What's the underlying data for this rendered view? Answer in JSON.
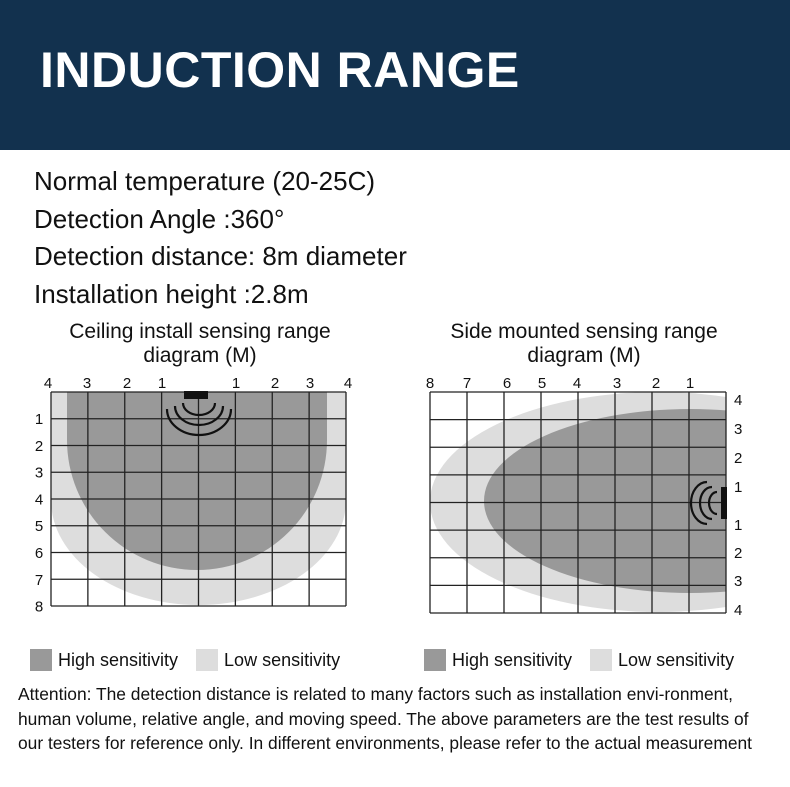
{
  "header": {
    "title": "INDUCTION RANGE"
  },
  "specs": [
    "Normal temperature (20-25C)",
    "Detection Angle :360°",
    "Detection distance: 8m diameter",
    "Installation height :2.8m"
  ],
  "ceiling": {
    "title_line1": "Ceiling install sensing range",
    "title_line2": "diagram (M)",
    "top_labels": [
      "4",
      "3",
      "2",
      "1",
      "1",
      "2",
      "3",
      "4"
    ],
    "left_labels": [
      "1",
      "2",
      "3",
      "4",
      "5",
      "6",
      "7",
      "8"
    ]
  },
  "side": {
    "title_line1": "Side mounted sensing range",
    "title_line2": "diagram (M)",
    "top_labels": [
      "8",
      "7",
      "6",
      "5",
      "4",
      "3",
      "2",
      "1"
    ],
    "right_labels": [
      "4",
      "3",
      "2",
      "1",
      "1",
      "2",
      "3",
      "4"
    ]
  },
  "legend": {
    "high": "High sensitivity",
    "low": "Low sensitivity",
    "high_color": "#999999",
    "low_color": "#dddddd"
  },
  "note": "Attention: The detection distance is related to many factors such as installation envi-ronment, human volume, relative angle, and moving speed. The above parameters are the test results of our testers for reference only. In different environments, please refer to the actual measurement"
}
